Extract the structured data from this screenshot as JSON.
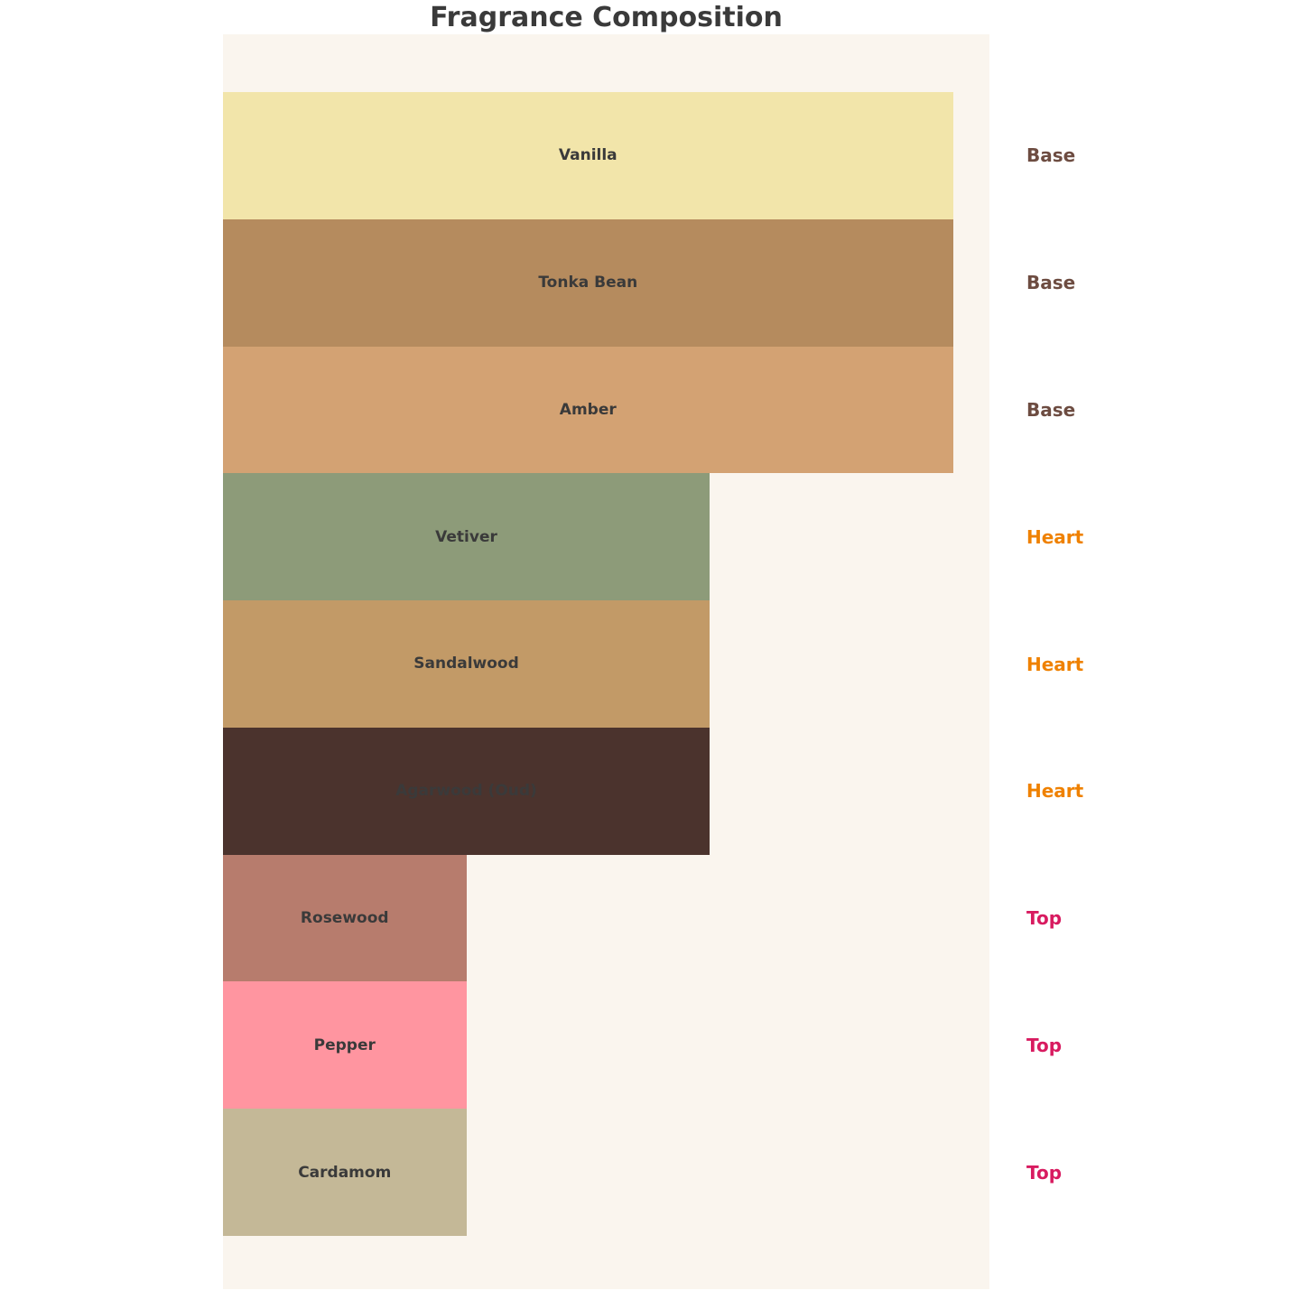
{
  "chart_data": {
    "type": "bar",
    "orientation": "horizontal",
    "title": "Fragrance Composition",
    "xlim": [
      0,
      3.15
    ],
    "grid": false,
    "legend": "none",
    "plot_background": "#faf5ee",
    "bar_label_color": "#3a3a3a",
    "value_note": "bar length encodes note tier: Top=1, Heart=2, Base=3",
    "bars": [
      {
        "label": "Vanilla",
        "group": "Base",
        "value": 3,
        "color": "#f2e5aa"
      },
      {
        "label": "Tonka Bean",
        "group": "Base",
        "value": 3,
        "color": "#b58b5e"
      },
      {
        "label": "Amber",
        "group": "Base",
        "value": 3,
        "color": "#d3a273"
      },
      {
        "label": "Vetiver",
        "group": "Heart",
        "value": 2,
        "color": "#8d9b79"
      },
      {
        "label": "Sandalwood",
        "group": "Heart",
        "value": 2,
        "color": "#c29a67"
      },
      {
        "label": "Agarwood (Oud)",
        "group": "Heart",
        "value": 2,
        "color": "#4b332d"
      },
      {
        "label": "Rosewood",
        "group": "Top",
        "value": 1,
        "color": "#b77c6d"
      },
      {
        "label": "Pepper",
        "group": "Top",
        "value": 1,
        "color": "#ff95a0"
      },
      {
        "label": "Cardamom",
        "group": "Top",
        "value": 1,
        "color": "#c4b897"
      }
    ],
    "group_colors": {
      "Base": "#6d4c41",
      "Heart": "#ef8100",
      "Top": "#d81b60"
    }
  }
}
